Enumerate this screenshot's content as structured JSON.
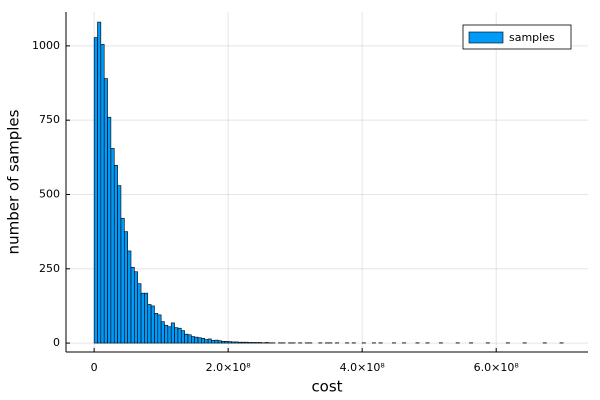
{
  "chart_data": {
    "type": "histogram",
    "xlabel": "cost",
    "ylabel": "number of samples",
    "series": [
      {
        "name": "samples",
        "color": "#009af9",
        "bins": [
          0,
          5000000.0,
          10000000.0,
          15000000.0,
          20000000.0,
          25000000.0,
          30000000.0,
          35000000.0,
          40000000.0,
          45000000.0,
          50000000.0,
          55000000.0,
          60000000.0,
          65000000.0,
          70000000.0,
          75000000.0,
          80000000.0,
          85000000.0,
          90000000.0,
          95000000.0,
          100000000.0,
          105000000.0,
          110000000.0,
          115000000.0,
          120000000.0,
          125000000.0,
          130000000.0,
          135000000.0,
          140000000.0,
          145000000.0,
          150000000.0,
          155000000.0,
          160000000.0,
          165000000.0,
          170000000.0,
          175000000.0,
          180000000.0,
          185000000.0,
          190000000.0,
          195000000.0,
          200000000.0,
          205000000.0,
          210000000.0,
          215000000.0,
          220000000.0,
          225000000.0,
          230000000.0,
          235000000.0,
          240000000.0,
          245000000.0,
          250000000.0,
          255000000.0,
          260000000.0,
          265000000.0,
          270000000.0,
          275000000.0,
          280000000.0,
          285000000.0,
          290000000.0,
          295000000.0,
          300000000.0,
          305000000.0,
          310000000.0,
          315000000.0,
          320000000.0,
          325000000.0,
          330000000.0,
          335000000.0,
          340000000.0,
          345000000.0,
          350000000.0,
          355000000.0,
          360000000.0,
          365000000.0,
          370000000.0,
          375000000.0,
          380000000.0,
          385000000.0,
          390000000.0,
          395000000.0,
          400000000.0,
          405000000.0,
          410000000.0,
          415000000.0,
          420000000.0,
          425000000.0,
          430000000.0,
          435000000.0,
          440000000.0,
          445000000.0,
          450000000.0,
          455000000.0,
          460000000.0,
          465000000.0,
          470000000.0,
          475000000.0,
          480000000.0,
          485000000.0,
          490000000.0,
          495000000.0,
          500000000.0,
          505000000.0,
          510000000.0,
          515000000.0,
          520000000.0,
          525000000.0,
          530000000.0,
          535000000.0,
          540000000.0,
          545000000.0,
          550000000.0,
          555000000.0,
          560000000.0,
          565000000.0,
          570000000.0,
          575000000.0,
          580000000.0,
          585000000.0,
          590000000.0,
          595000000.0,
          600000000.0,
          605000000.0,
          610000000.0,
          615000000.0,
          620000000.0,
          625000000.0,
          630000000.0,
          635000000.0,
          640000000.0,
          645000000.0,
          650000000.0,
          655000000.0,
          660000000.0,
          665000000.0,
          670000000.0,
          675000000.0,
          680000000.0,
          685000000.0,
          690000000.0,
          695000000.0,
          700000000.0
        ],
        "values": [
          1028,
          1080,
          1005,
          890,
          760,
          655,
          598,
          530,
          420,
          375,
          310,
          255,
          240,
          200,
          168,
          168,
          130,
          125,
          100,
          95,
          72,
          60,
          55,
          68,
          52,
          50,
          42,
          30,
          28,
          22,
          20,
          18,
          16,
          12,
          14,
          9,
          10,
          8,
          6,
          6,
          5,
          4,
          4,
          3,
          3,
          3,
          2,
          2,
          2,
          2,
          1,
          2,
          1,
          1,
          0,
          1,
          1,
          0,
          1,
          1,
          0,
          1,
          0,
          1,
          1,
          0,
          0,
          1,
          0,
          1,
          1,
          0,
          1,
          0,
          0,
          1,
          0,
          1,
          0,
          0,
          1,
          0,
          0,
          1,
          0,
          1,
          0,
          0,
          0,
          1,
          0,
          0,
          1,
          0,
          0,
          0,
          1,
          0,
          0,
          1,
          0,
          0,
          0,
          1,
          0,
          0,
          0,
          0,
          1,
          0,
          0,
          0,
          1,
          0,
          0,
          0,
          0,
          1,
          0,
          0,
          0,
          0,
          0,
          1,
          0,
          0,
          0,
          0,
          1,
          0,
          0,
          0,
          0,
          0,
          1,
          0,
          0,
          0,
          0,
          1
        ]
      }
    ],
    "xlim": [
      -42000000.0,
      737000000.0
    ],
    "xticks": [
      {
        "value": 0,
        "label": "0"
      },
      {
        "value": 200000000.0,
        "label": "2.0×10⁸"
      },
      {
        "value": 400000000.0,
        "label": "4.0×10⁸"
      },
      {
        "value": 600000000.0,
        "label": "6.0×10⁸"
      }
    ],
    "ylim": [
      -30,
      1114
    ],
    "yticks": [
      0,
      250,
      500,
      750,
      1000
    ],
    "grid": true,
    "legend": "top-right"
  }
}
